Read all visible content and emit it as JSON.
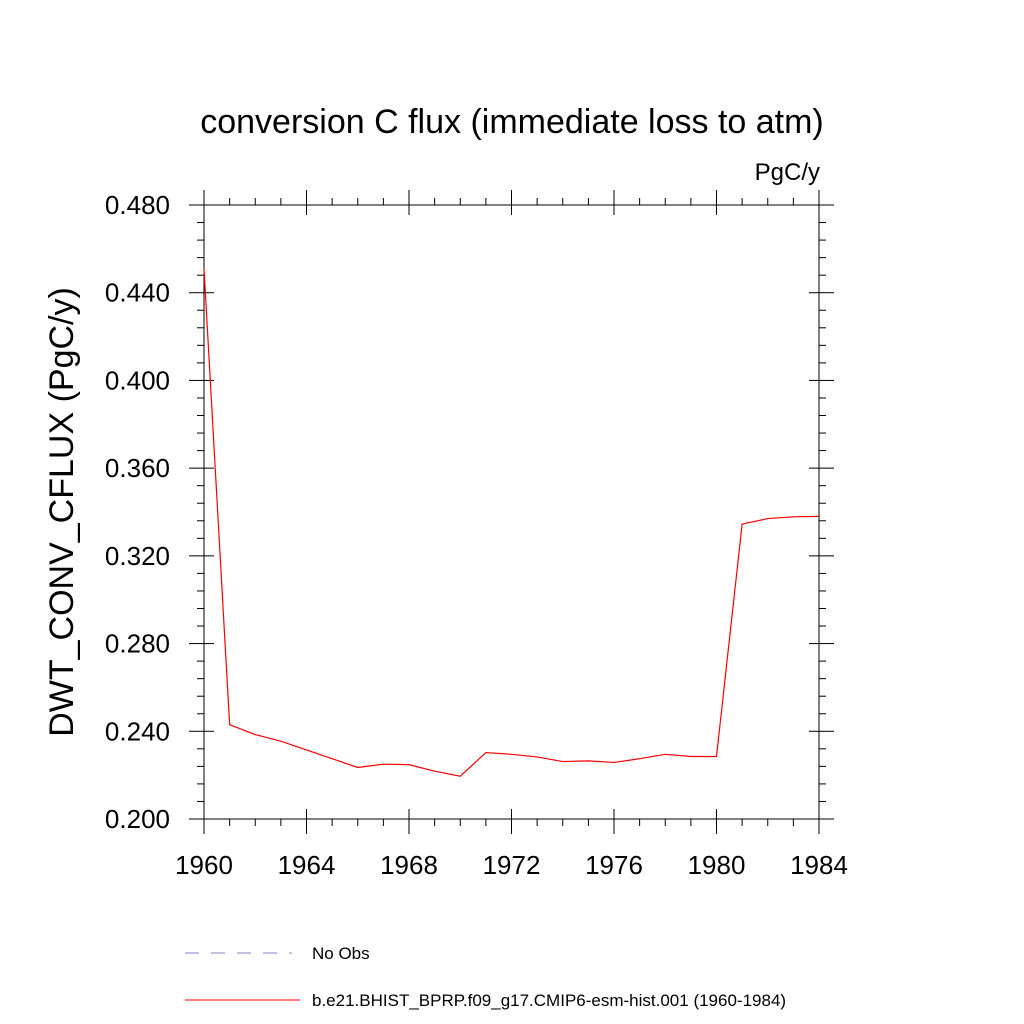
{
  "chart_data": {
    "type": "line",
    "title": "conversion C flux (immediate loss to atm)",
    "units": "PgC/y",
    "xlabel": "",
    "ylabel": "DWT_CONV_CFLUX  (PgC/y)",
    "xlim": [
      1960,
      1984
    ],
    "ylim": [
      0.2,
      0.48
    ],
    "x_ticks": [
      "1960",
      "1964",
      "1968",
      "1972",
      "1976",
      "1980",
      "1984"
    ],
    "y_ticks": [
      "0.200",
      "0.240",
      "0.280",
      "0.320",
      "0.360",
      "0.400",
      "0.440",
      "0.480"
    ],
    "series": [
      {
        "name": "b.e21.BHIST_BPRP.f09_g17.CMIP6-esm-hist.001 (1960-1984)",
        "color": "#ff0000",
        "dash": "solid",
        "x": [
          1960,
          1961,
          1962,
          1963,
          1964,
          1965,
          1966,
          1967,
          1968,
          1969,
          1970,
          1971,
          1972,
          1973,
          1974,
          1975,
          1976,
          1977,
          1978,
          1979,
          1980,
          1981,
          1982,
          1983,
          1984
        ],
        "values": [
          0.451,
          0.243,
          0.2385,
          0.2355,
          0.2315,
          0.2275,
          0.2235,
          0.225,
          0.2248,
          0.2218,
          0.2195,
          0.2303,
          0.2295,
          0.2283,
          0.2262,
          0.2265,
          0.2258,
          0.2275,
          0.2295,
          0.2285,
          0.2285,
          0.3345,
          0.337,
          0.3378,
          0.338
        ]
      }
    ],
    "legend": [
      {
        "label": "No Obs",
        "color": "#8080c0",
        "dash": "dashed"
      },
      {
        "label": "b.e21.BHIST_BPRP.f09_g17.CMIP6-esm-hist.001 (1960-1984)",
        "color": "#ff0000",
        "dash": "solid"
      }
    ]
  }
}
